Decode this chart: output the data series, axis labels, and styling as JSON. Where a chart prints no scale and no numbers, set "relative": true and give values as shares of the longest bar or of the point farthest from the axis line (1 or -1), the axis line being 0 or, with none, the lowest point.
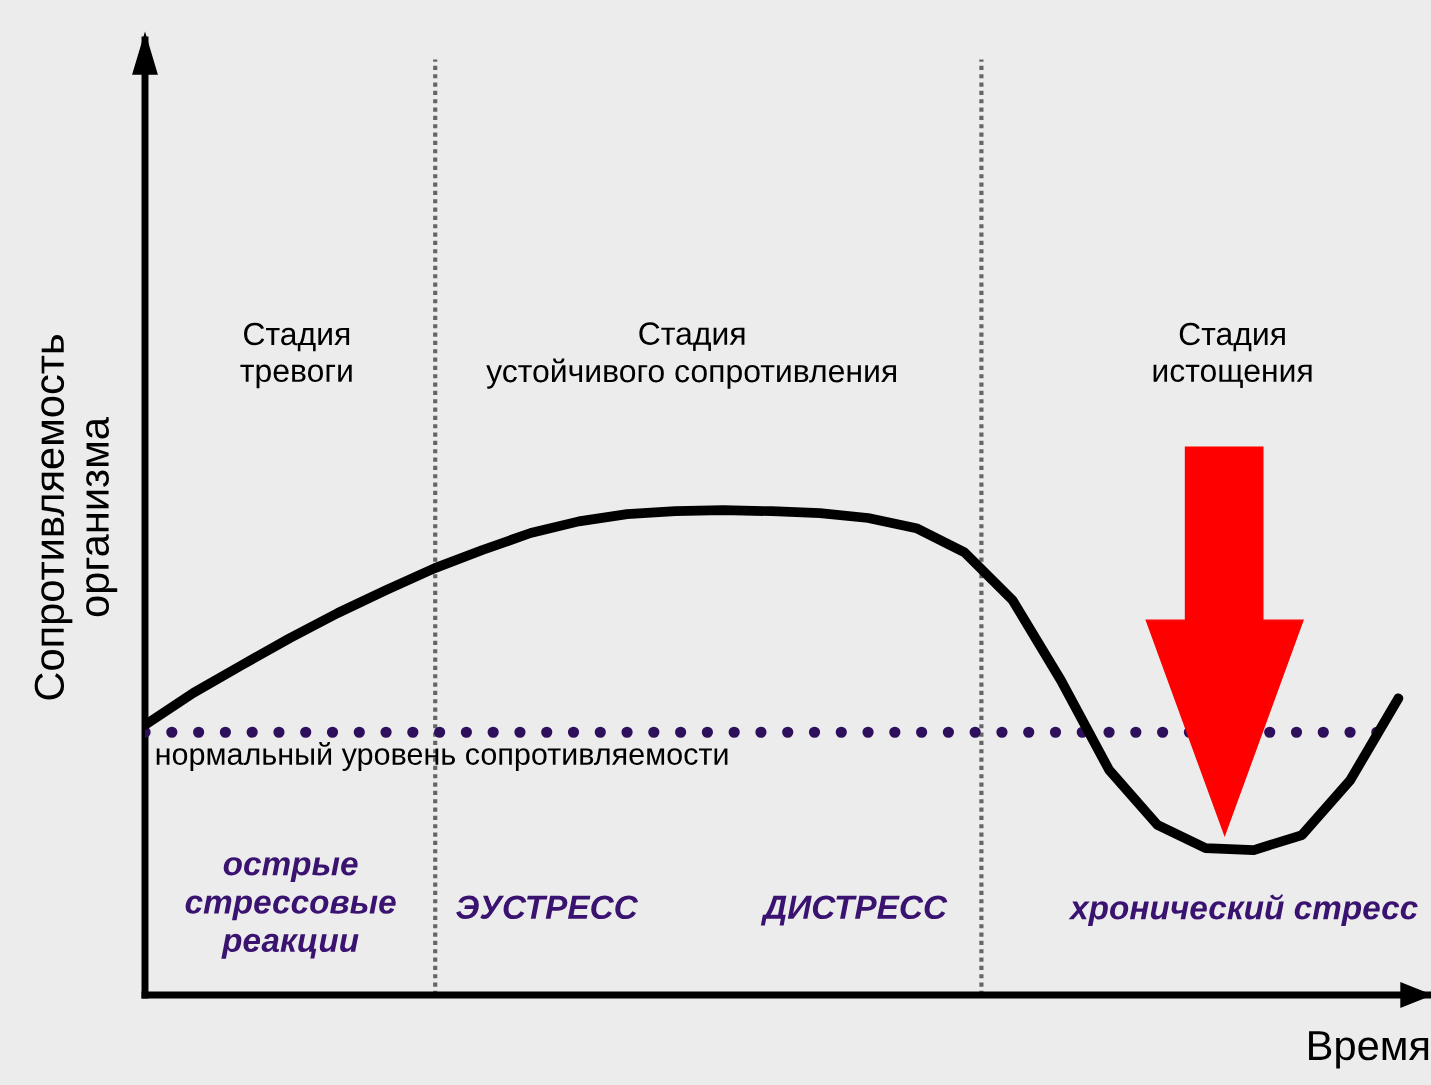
{
  "chart_data": {
    "type": "line",
    "relative": true,
    "tick_labels": false,
    "line_style": "solid",
    "xlabel": "Время",
    "ylabel": "Сопротивляемость\nорганизма",
    "categories": [
      null,
      null,
      null,
      null,
      null,
      null,
      null,
      null,
      null,
      null,
      null,
      null,
      null,
      null,
      null,
      null,
      null,
      null,
      null,
      null,
      null,
      null,
      null,
      null,
      null,
      null,
      null
    ],
    "series": [
      {
        "color": "#000000",
        "values": [
          0.557,
          0.623,
          0.68,
          0.736,
          0.788,
          0.835,
          0.88,
          0.918,
          0.953,
          0.977,
          0.992,
          0.998,
          1,
          0.998,
          0.994,
          0.984,
          0.963,
          0.913,
          0.814,
          0.649,
          0.464,
          0.351,
          0.303,
          0.299,
          0.33,
          0.443,
          0.612
        ]
      }
    ],
    "ref_lines": [
      {
        "axis": "y",
        "value": 0.542,
        "label": "нормальный уровень сопротивляемости",
        "color": "#2e0f5c",
        "line_style": "dotted"
      }
    ],
    "annotations": [
      "Стадия\nтревоги",
      "Стадия\nустойчивого сопротивления",
      "Стадия\nистощения",
      "острые\nстрессовые\nреакции",
      "ЭУСТРЕСС",
      "ДИСТРЕСС",
      "хронический стресс"
    ]
  }
}
